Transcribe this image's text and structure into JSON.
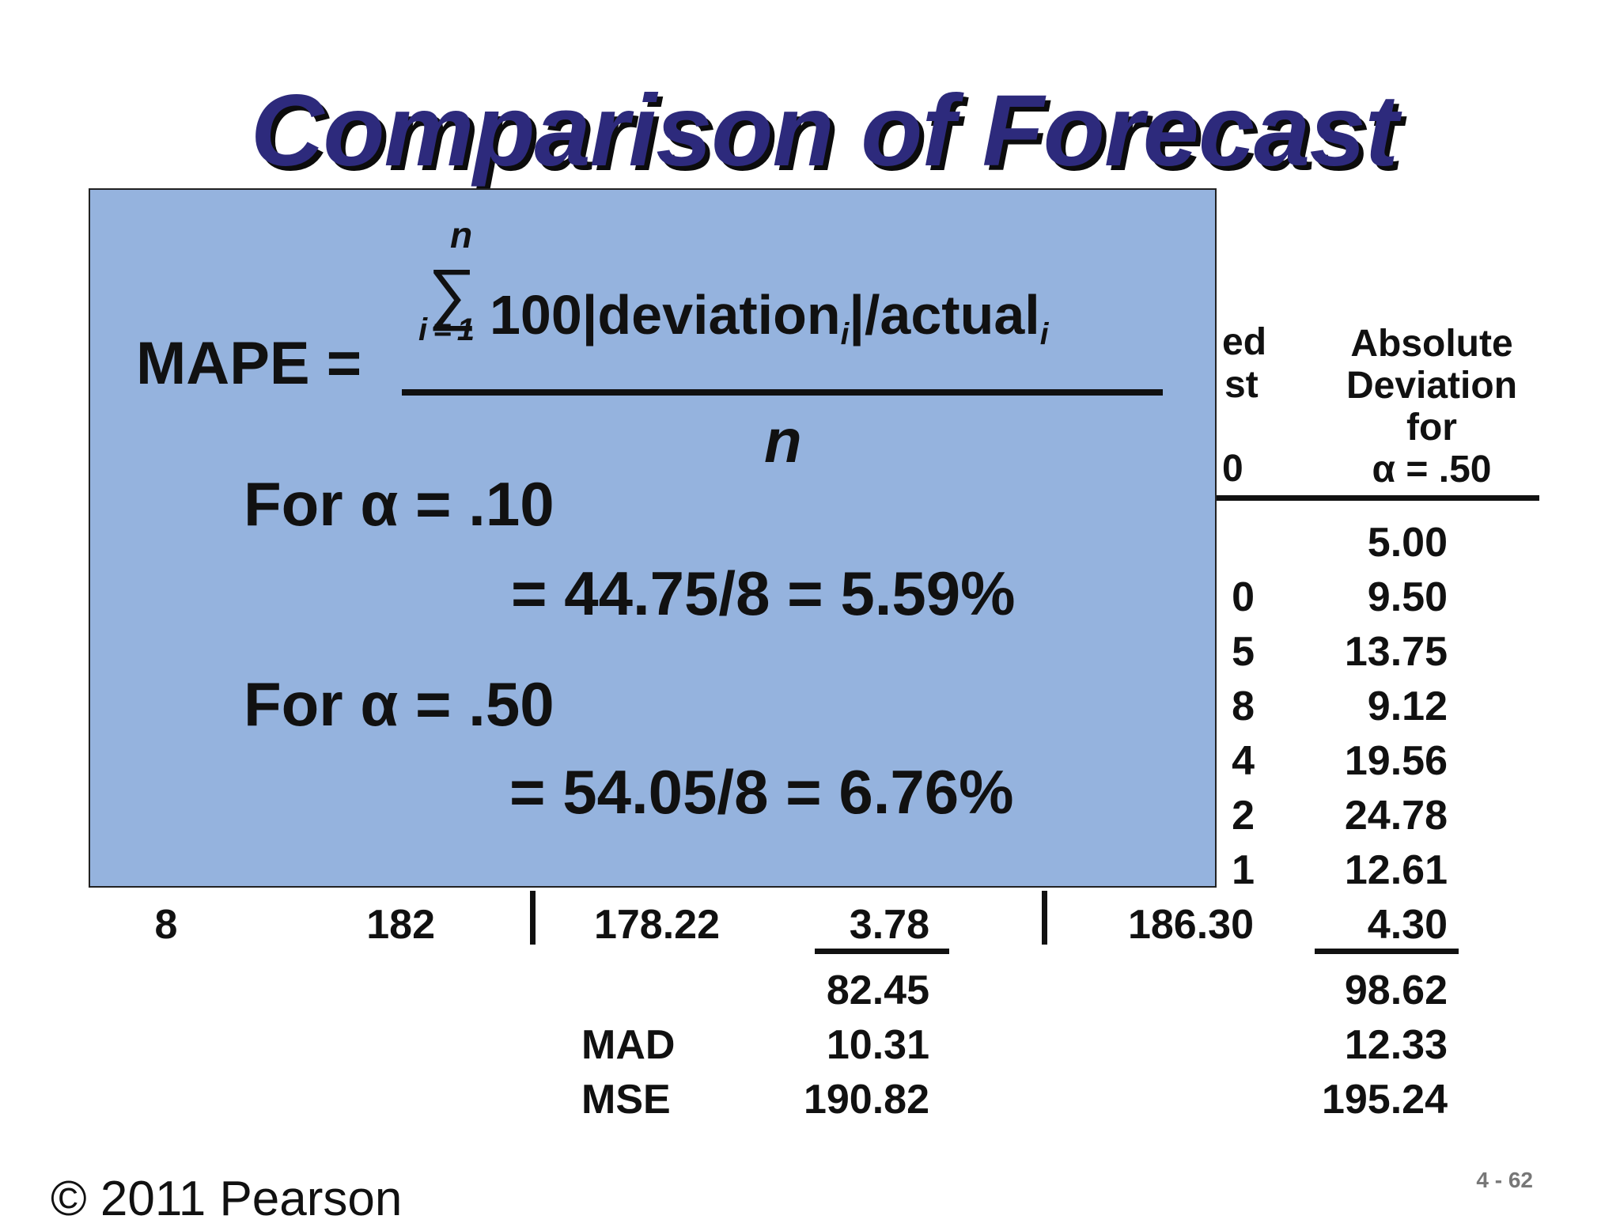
{
  "slide": {
    "title": "Comparison of Forecast",
    "footer": "© 2011 Pearson",
    "slide_number": "4 - 62"
  },
  "table": {
    "header_partial_lines": [
      "ed",
      "st",
      "0"
    ],
    "header_abs_dev": [
      "Absolute",
      "Deviation",
      "for",
      "α = .50"
    ],
    "rows_partial_forecast": [
      "0",
      "5",
      "8",
      "4",
      "2",
      "1"
    ],
    "abs_dev_050": [
      "5.00",
      "9.50",
      "13.75",
      "9.12",
      "19.56",
      "24.78",
      "12.61",
      "4.30"
    ],
    "last_row": {
      "quarter": "8",
      "actual": "182",
      "forecast_010": "178.22",
      "abs_dev_010": "3.78",
      "forecast_050": "186.30"
    },
    "totals": {
      "sum_010": "82.45",
      "sum_050": "98.62"
    },
    "mad": {
      "label": "MAD",
      "value_010": "10.31",
      "value_050": "12.33"
    },
    "mse": {
      "label": "MSE",
      "value_010": "190.82",
      "value_050": "195.24"
    }
  },
  "formula": {
    "lhs": "MAPE =",
    "sum_upper": "n",
    "sum_lower": "i = 1",
    "sigma": "∑",
    "numerator_a": "100|deviation",
    "numerator_sub1": "i",
    "numerator_b": "|/actual",
    "numerator_sub2": "i",
    "denominator": "n",
    "case1_label": "For α = .10",
    "case1_result": "= 44.75/8 = 5.59%",
    "case2_label": "For α = .50",
    "case2_result": "= 54.05/8 = 6.76%"
  }
}
